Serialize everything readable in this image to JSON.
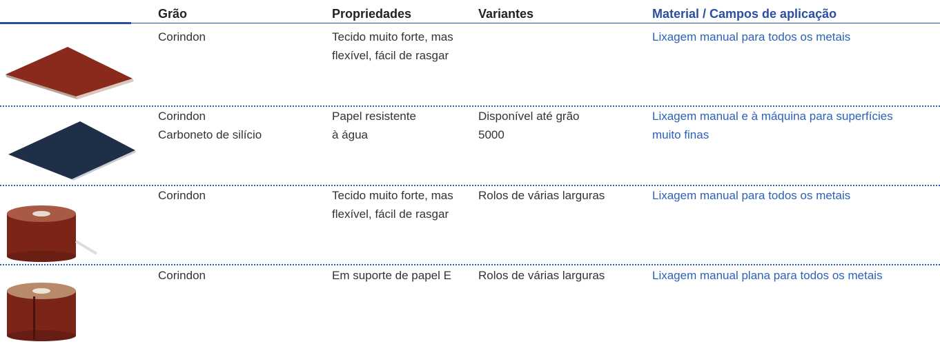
{
  "table": {
    "headers": [
      "Grão",
      "Propriedades",
      "Variantes",
      "Material / Campos de aplicação"
    ],
    "rows": [
      {
        "grain": [
          "Corindon"
        ],
        "properties": [
          "Tecido muito forte, mas",
          "flexível, fácil de rasgar"
        ],
        "application": [
          "Lixagem manual para todos os metais"
        ]
      },
      {
        "grain": [
          "Corindon",
          "Carboneto de silício"
        ],
        "properties": [
          "Papel resistente",
          "à água"
        ],
        "variants": [
          "Disponível até grão",
          "5000"
        ],
        "application": [
          "Lixagem manual e à máquina para superfícies",
          "muito finas"
        ]
      },
      {
        "grain": [
          "Corindon"
        ],
        "properties": [
          "Tecido muito forte, mas",
          "flexível, fácil de rasgar"
        ],
        "variants": [
          "Rolos de várias larguras"
        ],
        "application": [
          "Lixagem manual para todos os metais"
        ]
      },
      {
        "grain": [
          "Corindon"
        ],
        "properties": [
          "Em suporte de papel E"
        ],
        "variants": [
          "Rolos de várias larguras"
        ],
        "application": [
          "Lixagem manual plana para todos os metais"
        ]
      }
    ]
  }
}
